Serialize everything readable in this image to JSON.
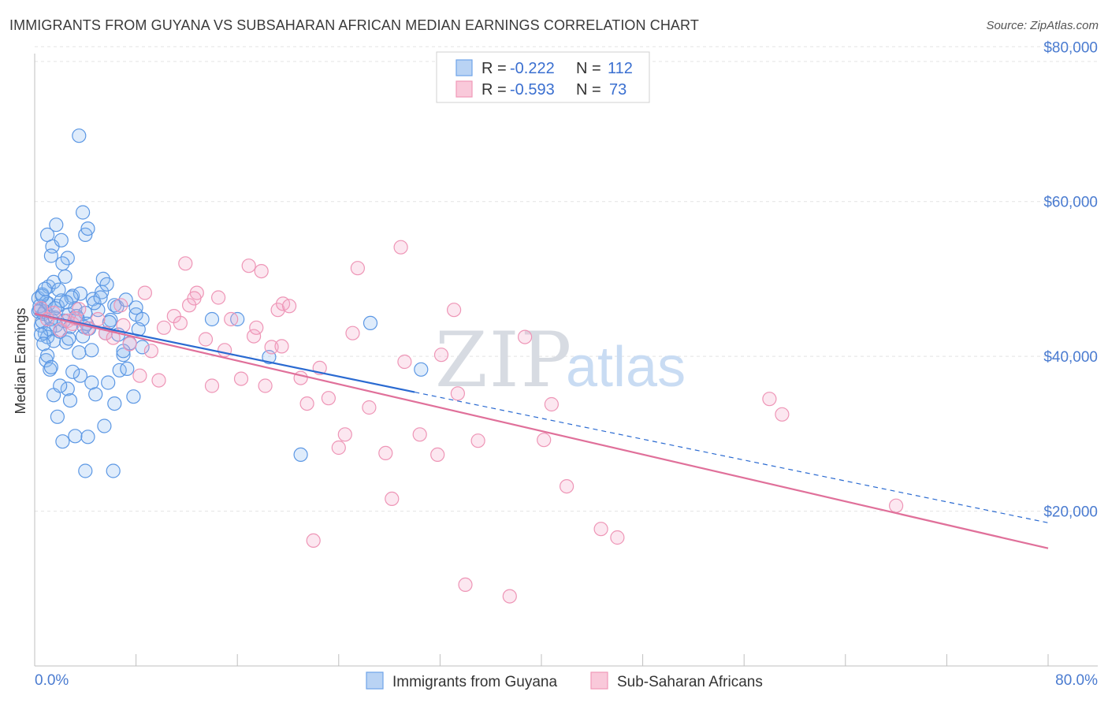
{
  "title": "IMMIGRANTS FROM GUYANA VS SUBSAHARAN AFRICAN MEDIAN EARNINGS CORRELATION CHART",
  "source": "Source: ZipAtlas.com",
  "watermark": {
    "zip": "ZIP",
    "atlas": "atlas"
  },
  "colors": {
    "blue": "#6fa3e8",
    "blue_line": "#2a6ad1",
    "pink": "#f09ab8",
    "pink_line": "#e0709a",
    "axis_label": "#4a7bd0"
  },
  "legend": {
    "rows": [
      {
        "r_label": "R =",
        "r_value": "-0.222",
        "n_label": "N =",
        "n_value": "112"
      },
      {
        "r_label": "R =",
        "r_value": "-0.593",
        "n_label": "N =",
        "n_value": "73"
      }
    ]
  },
  "chart_data": {
    "type": "scatter",
    "ylabel": "Median Earnings",
    "xlim": [
      0,
      80
    ],
    "ylim": [
      0,
      84000
    ],
    "x_tick_labels": [
      "0.0%",
      "80.0%"
    ],
    "y_ticks": [
      {
        "value": 20000,
        "label": "$20,000"
      },
      {
        "value": 40000,
        "label": "$40,000"
      },
      {
        "value": 60000,
        "label": "$60,000"
      },
      {
        "value": 80000,
        "label": "$80,000"
      }
    ],
    "grid": "horizontal dashed",
    "series": [
      {
        "name": "Immigrants from Guyana",
        "color": "#6fa3e8",
        "trend": {
          "x_start": 0,
          "y_start": 45500,
          "x_solid_end": 30,
          "x_end": 80,
          "y_end": 18500
        },
        "points": [
          [
            0.3,
            47500
          ],
          [
            0.4,
            46000
          ],
          [
            0.5,
            44000
          ],
          [
            0.6,
            48000
          ],
          [
            0.7,
            45500
          ],
          [
            0.8,
            43000
          ],
          [
            0.9,
            47000
          ],
          [
            1.0,
            42500
          ],
          [
            0.4,
            46500
          ],
          [
            0.6,
            44500
          ],
          [
            0.8,
            45800
          ],
          [
            1.1,
            46800
          ],
          [
            1.2,
            43500
          ],
          [
            1.3,
            44800
          ],
          [
            1.5,
            42000
          ],
          [
            1.6,
            45000
          ],
          [
            1.7,
            44000
          ],
          [
            1.8,
            46500
          ],
          [
            2.0,
            43200
          ],
          [
            2.1,
            47200
          ],
          [
            2.3,
            44600
          ],
          [
            2.5,
            41800
          ],
          [
            2.7,
            45400
          ],
          [
            2.8,
            43800
          ],
          [
            3.0,
            47800
          ],
          [
            3.2,
            46200
          ],
          [
            3.4,
            44900
          ],
          [
            3.6,
            48100
          ],
          [
            3.8,
            42600
          ],
          [
            4.0,
            45600
          ],
          [
            4.3,
            43600
          ],
          [
            4.6,
            47400
          ],
          [
            5.0,
            46000
          ],
          [
            5.3,
            48300
          ],
          [
            5.6,
            43000
          ],
          [
            6.0,
            44700
          ],
          [
            6.3,
            46600
          ],
          [
            6.6,
            42800
          ],
          [
            7.0,
            40200
          ],
          [
            7.5,
            41700
          ],
          [
            8.0,
            45400
          ],
          [
            8.5,
            44800
          ],
          [
            1.0,
            55700
          ],
          [
            1.4,
            54200
          ],
          [
            1.7,
            57000
          ],
          [
            2.1,
            55000
          ],
          [
            2.6,
            52700
          ],
          [
            3.5,
            68500
          ],
          [
            3.8,
            58600
          ],
          [
            4.0,
            55700
          ],
          [
            4.2,
            56500
          ],
          [
            5.4,
            50000
          ],
          [
            5.7,
            49300
          ],
          [
            1.3,
            53000
          ],
          [
            2.2,
            52000
          ],
          [
            1.1,
            49000
          ],
          [
            1.5,
            49600
          ],
          [
            2.4,
            50300
          ],
          [
            0.9,
            39500
          ],
          [
            1.2,
            38300
          ],
          [
            1.5,
            35000
          ],
          [
            1.8,
            32200
          ],
          [
            2.2,
            29000
          ],
          [
            2.6,
            35800
          ],
          [
            2.8,
            34300
          ],
          [
            3.2,
            29700
          ],
          [
            3.6,
            37500
          ],
          [
            4.0,
            25200
          ],
          [
            4.2,
            29600
          ],
          [
            4.5,
            36600
          ],
          [
            4.8,
            35100
          ],
          [
            5.5,
            31000
          ],
          [
            5.8,
            36600
          ],
          [
            6.2,
            25200
          ],
          [
            6.3,
            33900
          ],
          [
            6.7,
            38200
          ],
          [
            7.0,
            40700
          ],
          [
            7.3,
            38400
          ],
          [
            7.8,
            34800
          ],
          [
            8.2,
            43500
          ],
          [
            8.5,
            41200
          ],
          [
            6.5,
            46400
          ],
          [
            7.2,
            47300
          ],
          [
            8.0,
            46300
          ],
          [
            14.0,
            44800
          ],
          [
            16.0,
            44800
          ],
          [
            18.5,
            39900
          ],
          [
            21.0,
            27300
          ],
          [
            26.5,
            44300
          ],
          [
            30.5,
            38300
          ],
          [
            0.5,
            42800
          ],
          [
            0.7,
            41600
          ],
          [
            1.0,
            40100
          ],
          [
            1.3,
            38600
          ],
          [
            2.0,
            36200
          ],
          [
            3.0,
            38000
          ],
          [
            3.5,
            40500
          ],
          [
            4.5,
            40800
          ],
          [
            0.3,
            45800
          ],
          [
            0.6,
            47800
          ],
          [
            1.9,
            48600
          ],
          [
            2.9,
            47600
          ],
          [
            3.3,
            45200
          ],
          [
            4.1,
            44200
          ],
          [
            4.7,
            46900
          ],
          [
            5.2,
            47600
          ],
          [
            2.5,
            47000
          ],
          [
            1.6,
            46200
          ],
          [
            3.9,
            43800
          ],
          [
            0.8,
            48700
          ],
          [
            2.7,
            42300
          ],
          [
            5.9,
            44400
          ]
        ]
      },
      {
        "name": "Sub-Saharan Africans",
        "color": "#f09ab8",
        "trend": {
          "x_start": 0,
          "y_start": 45500,
          "x_end": 80,
          "y_end": 15200
        },
        "points": [
          [
            0.5,
            46200
          ],
          [
            1.0,
            44800
          ],
          [
            1.5,
            45600
          ],
          [
            2.0,
            43400
          ],
          [
            2.6,
            44600
          ],
          [
            3.0,
            44200
          ],
          [
            3.5,
            46100
          ],
          [
            4.2,
            43600
          ],
          [
            5.0,
            44800
          ],
          [
            5.6,
            43000
          ],
          [
            6.2,
            42400
          ],
          [
            7.0,
            44000
          ],
          [
            7.5,
            41600
          ],
          [
            8.3,
            37500
          ],
          [
            8.7,
            48200
          ],
          [
            9.2,
            40700
          ],
          [
            9.8,
            36900
          ],
          [
            10.2,
            43700
          ],
          [
            11.0,
            45200
          ],
          [
            11.5,
            44300
          ],
          [
            11.9,
            52000
          ],
          [
            12.2,
            46600
          ],
          [
            12.8,
            48200
          ],
          [
            13.5,
            42200
          ],
          [
            14.0,
            36200
          ],
          [
            14.5,
            47600
          ],
          [
            15.0,
            40800
          ],
          [
            15.5,
            44800
          ],
          [
            16.3,
            37100
          ],
          [
            16.9,
            51700
          ],
          [
            17.3,
            42600
          ],
          [
            17.9,
            51000
          ],
          [
            18.2,
            36200
          ],
          [
            18.7,
            41200
          ],
          [
            19.5,
            41300
          ],
          [
            19.2,
            46000
          ],
          [
            19.6,
            46800
          ],
          [
            20.1,
            46500
          ],
          [
            21.0,
            37200
          ],
          [
            21.5,
            33900
          ],
          [
            22.5,
            38500
          ],
          [
            23.2,
            34600
          ],
          [
            24.0,
            28200
          ],
          [
            24.5,
            29900
          ],
          [
            25.1,
            43000
          ],
          [
            25.5,
            51400
          ],
          [
            26.4,
            33400
          ],
          [
            27.7,
            27500
          ],
          [
            28.2,
            21600
          ],
          [
            28.9,
            54100
          ],
          [
            29.2,
            39300
          ],
          [
            30.4,
            29900
          ],
          [
            31.8,
            27300
          ],
          [
            32.1,
            40200
          ],
          [
            33.1,
            46000
          ],
          [
            33.4,
            35200
          ],
          [
            34.0,
            10500
          ],
          [
            35.0,
            29100
          ],
          [
            37.5,
            9000
          ],
          [
            38.7,
            42500
          ],
          [
            40.2,
            29200
          ],
          [
            40.8,
            33800
          ],
          [
            42.0,
            23200
          ],
          [
            44.7,
            17700
          ],
          [
            46.0,
            16600
          ],
          [
            58.0,
            34500
          ],
          [
            59.0,
            32500
          ],
          [
            68.0,
            20700
          ],
          [
            22.0,
            16200
          ],
          [
            3.2,
            44900
          ],
          [
            6.8,
            46600
          ],
          [
            12.6,
            47500
          ],
          [
            17.5,
            43700
          ]
        ]
      }
    ]
  },
  "bottom_legend": [
    {
      "label": "Immigrants from Guyana"
    },
    {
      "label": "Sub-Saharan Africans"
    }
  ]
}
